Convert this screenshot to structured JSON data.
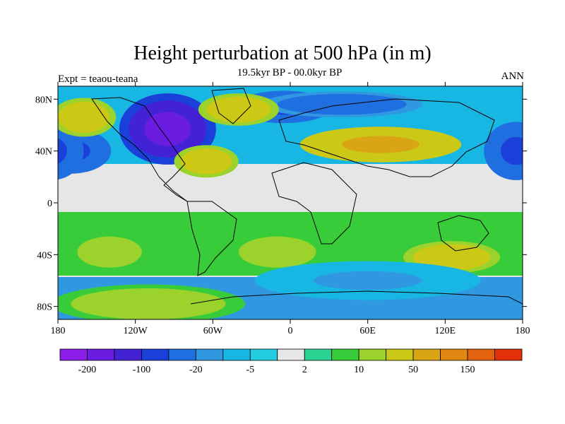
{
  "chart_data": {
    "type": "heatmap",
    "title": "Height perturbation at 500 hPa (in m)",
    "subtitle": "19.5kyr BP - 00.0kyr BP",
    "left_string": "Expt = teaou-teana",
    "right_string": "ANN",
    "projection": "cylindrical equidistant",
    "xlim": [
      -180,
      180
    ],
    "ylim": [
      -90,
      90
    ],
    "x_ticks": [
      {
        "value": -180,
        "label": "180"
      },
      {
        "value": -120,
        "label": "120W"
      },
      {
        "value": -60,
        "label": "60W"
      },
      {
        "value": 0,
        "label": "0"
      },
      {
        "value": 60,
        "label": "60E"
      },
      {
        "value": 120,
        "label": "120E"
      },
      {
        "value": 180,
        "label": "180"
      }
    ],
    "y_ticks": [
      {
        "value": 80,
        "label": "80N"
      },
      {
        "value": 40,
        "label": "40N"
      },
      {
        "value": 0,
        "label": "0"
      },
      {
        "value": -40,
        "label": "40S"
      },
      {
        "value": -80,
        "label": "80S"
      }
    ],
    "colorbar": {
      "colors": [
        "#8c1de8",
        "#6a1de0",
        "#4322d6",
        "#1b3fd9",
        "#1f6fe0",
        "#2f98e0",
        "#18b7e3",
        "#22cbe0",
        "#e6e6e6",
        "#2ad493",
        "#39cc3a",
        "#9bd22b",
        "#cbc816",
        "#d9a515",
        "#e08712",
        "#e3620f",
        "#e1300a"
      ],
      "labels": [
        {
          "after_box": 1,
          "text": "-200"
        },
        {
          "after_box": 3,
          "text": "-100"
        },
        {
          "after_box": 5,
          "text": "-20"
        },
        {
          "after_box": 7,
          "text": "-5"
        },
        {
          "after_box": 9,
          "text": "2"
        },
        {
          "after_box": 11,
          "text": "10"
        },
        {
          "after_box": 13,
          "text": "50"
        },
        {
          "after_box": 15,
          "text": "150"
        }
      ]
    },
    "features": [
      {
        "name": "north-pacific-low",
        "lon": -170,
        "lat": 40,
        "rx": 25,
        "ry": 14,
        "value": -60
      },
      {
        "name": "north-america-low",
        "lon": -95,
        "lat": 57,
        "rx": 30,
        "ry": 22,
        "value": -150
      },
      {
        "name": "north-atlantic-low",
        "lon": -5,
        "lat": 74,
        "rx": 30,
        "ry": 10,
        "value": -50
      },
      {
        "name": "arctic-low",
        "lon": 40,
        "lat": 76,
        "rx": 50,
        "ry": 8,
        "value": -40
      },
      {
        "name": "east-asia-low",
        "lon": 175,
        "lat": 40,
        "rx": 20,
        "ry": 18,
        "value": -60
      },
      {
        "name": "pacific-high-west",
        "lon": -160,
        "lat": 66,
        "rx": 20,
        "ry": 12,
        "value": 40
      },
      {
        "name": "atlantic-high",
        "lon": -65,
        "lat": 32,
        "rx": 20,
        "ry": 10,
        "value": 40
      },
      {
        "name": "greenland-high",
        "lon": -40,
        "lat": 72,
        "rx": 25,
        "ry": 10,
        "value": 40
      },
      {
        "name": "eurasia-high",
        "lon": 70,
        "lat": 45,
        "rx": 50,
        "ry": 11,
        "value": 60
      },
      {
        "name": "south-pacific-high",
        "lon": -140,
        "lat": -38,
        "rx": 25,
        "ry": 12,
        "value": 15
      },
      {
        "name": "south-atlantic-high",
        "lon": -10,
        "lat": -38,
        "rx": 30,
        "ry": 12,
        "value": 15
      },
      {
        "name": "indian-ocean-high",
        "lon": 125,
        "lat": -42,
        "rx": 30,
        "ry": 10,
        "value": 30
      },
      {
        "name": "antarctic-high",
        "lon": -110,
        "lat": -78,
        "rx": 60,
        "ry": 12,
        "value": 20
      },
      {
        "name": "southern-ocean-low",
        "lon": 60,
        "lat": -60,
        "rx": 70,
        "ry": 12,
        "value": -10
      }
    ]
  }
}
